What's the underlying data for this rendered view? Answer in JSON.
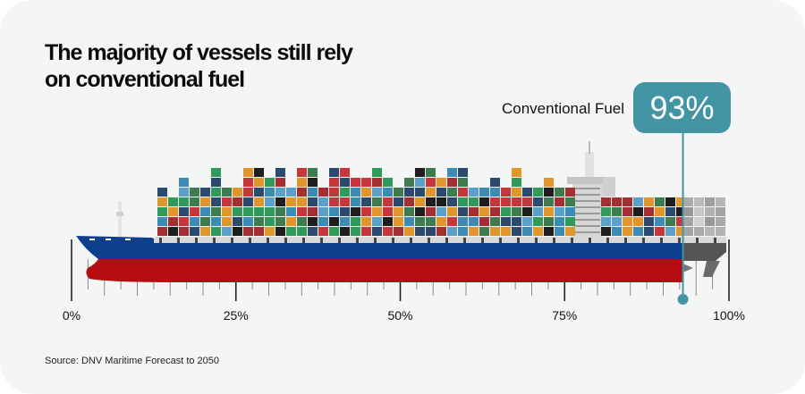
{
  "title": "The majority of vessels still rely on conventional fuel",
  "callout": {
    "label": "Conventional Fuel",
    "value_text": "93%"
  },
  "source": "Source: DNV Maritime Forecast to 2050",
  "colors": {
    "background": "#f4f6f6",
    "accent": "#4395a6",
    "hull_blue": "#0e3f8c",
    "hull_red": "#b60d12",
    "stern_gray": "#555555",
    "tick": "#8a8a8a",
    "major_tick": "#222222"
  },
  "chart_data": {
    "type": "bar",
    "title": "The majority of vessels still rely on conventional fuel",
    "categories": [
      "Conventional Fuel"
    ],
    "values": [
      93
    ],
    "unit": "%",
    "xlim": [
      0,
      100
    ],
    "x_ticks": [
      0,
      25,
      50,
      75,
      100
    ],
    "x_tick_labels": [
      "0%",
      "25%",
      "50%",
      "75%",
      "100%"
    ],
    "minor_tick_step": 2.5,
    "annotations": [
      {
        "text": "93%",
        "label": "Conventional Fuel",
        "x": 93
      }
    ],
    "grid": false,
    "legend": "none",
    "source": "Source: DNV Maritime Forecast to 2050"
  }
}
